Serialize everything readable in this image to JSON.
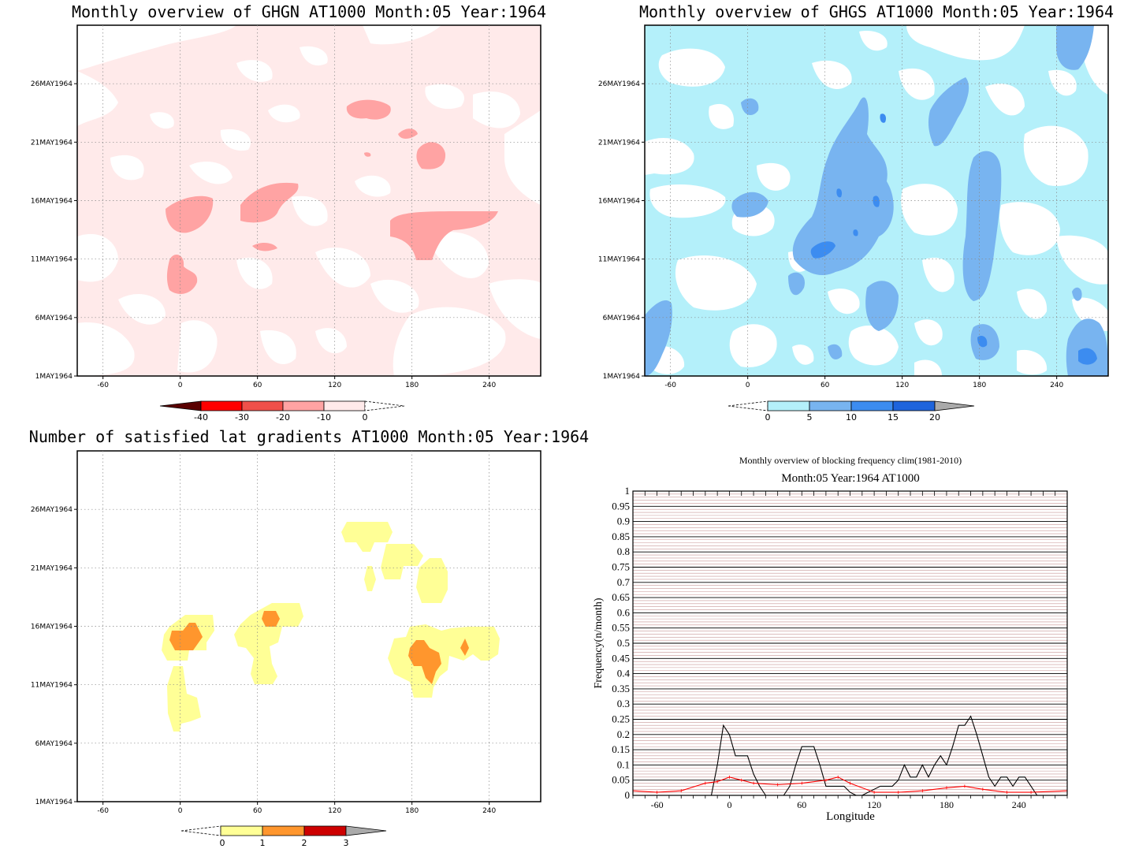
{
  "colors": {
    "ghgn": [
      "#5a0000",
      "#ff0000",
      "#f0504a",
      "#ffa3a3",
      "#ffeaea"
    ],
    "ghgs": [
      "#b4f0fa",
      "#78b4f0",
      "#3c8cf0",
      "#1e64dc",
      "#aaaaaa"
    ],
    "grad": [
      "#ffff96",
      "#ff962d",
      "#cd0000",
      "#aaaaaa"
    ],
    "freq_current": "#000000",
    "freq_clim": "#ff0000",
    "freq_grid": "#c89696"
  },
  "panels": {
    "ghgn": {
      "title": "Monthly overview of GHGN AT1000 Month:05 Year:1964",
      "colorbar_labels": [
        "-40",
        "-30",
        "-20",
        "-10",
        "0"
      ]
    },
    "ghgs": {
      "title": "Monthly overview of GHGS AT1000 Month:05 Year:1964",
      "colorbar_labels": [
        "0",
        "5",
        "10",
        "15",
        "20"
      ]
    },
    "grad": {
      "title": "Number of satisfied lat gradients AT1000 Month:05 Year:1964",
      "colorbar_labels": [
        "0",
        "1",
        "2",
        "3"
      ]
    },
    "freq": {
      "title": "Monthly overview of blocking frequency clim(1981-2010)",
      "subtitle": "Month:05 Year:1964  AT1000"
    }
  },
  "hovmoller_axes": {
    "x_ticks": [
      "-60",
      "0",
      "60",
      "120",
      "180",
      "240"
    ],
    "y_ticks": [
      "1MAY1964",
      "6MAY1964",
      "11MAY1964",
      "16MAY1964",
      "21MAY1964",
      "26MAY1964"
    ]
  },
  "chart_data": [
    {
      "type": "heatmap",
      "title": "Monthly overview of GHGN AT1000 Month:05 Year:1964",
      "x_ticks": [
        -60,
        0,
        60,
        120,
        180,
        240
      ],
      "y_ticks": [
        "1MAY1964",
        "6MAY1964",
        "11MAY1964",
        "16MAY1964",
        "21MAY1964",
        "26MAY1964"
      ],
      "xlim": [
        -80,
        280
      ],
      "colorbar": [
        -40,
        -30,
        -20,
        -10,
        0
      ]
    },
    {
      "type": "heatmap",
      "title": "Monthly overview of GHGS AT1000 Month:05 Year:1964",
      "x_ticks": [
        -60,
        0,
        60,
        120,
        180,
        240
      ],
      "y_ticks": [
        "1MAY1964",
        "6MAY1964",
        "11MAY1964",
        "16MAY1964",
        "21MAY1964",
        "26MAY1964"
      ],
      "xlim": [
        -80,
        280
      ],
      "colorbar": [
        0,
        5,
        10,
        15,
        20
      ]
    },
    {
      "type": "heatmap",
      "title": "Number of satisfied lat gradients AT1000 Month:05 Year:1964",
      "x_ticks": [
        -60,
        0,
        60,
        120,
        180,
        240
      ],
      "y_ticks": [
        "1MAY1964",
        "6MAY1964",
        "11MAY1964",
        "16MAY1964",
        "21MAY1964",
        "26MAY1964"
      ],
      "xlim": [
        -80,
        280
      ],
      "colorbar": [
        0,
        1,
        2,
        3
      ]
    },
    {
      "type": "line",
      "title": "Monthly overview of blocking frequency clim(1981-2010)",
      "subtitle": "Month:05 Year:1964  AT1000",
      "xlabel": "Longitude",
      "ylabel": "Frequency(n/month)",
      "xlim": [
        -80,
        280
      ],
      "ylim": [
        0,
        1
      ],
      "x_ticks": [
        -60,
        0,
        60,
        120,
        180,
        240
      ],
      "y_ticks": [
        "0",
        "0.05",
        "0.1",
        "0.15",
        "0.2",
        "0.25",
        "0.3",
        "0.35",
        "0.4",
        "0.45",
        "0.5",
        "0.55",
        "0.6",
        "0.65",
        "0.7",
        "0.75",
        "0.8",
        "0.85",
        "0.9",
        "0.95",
        "1"
      ],
      "series": [
        {
          "x": [
            -80,
            -15,
            -10,
            -5,
            0,
            5,
            15,
            20,
            25,
            30,
            45,
            50,
            55,
            60,
            65,
            70,
            75,
            80,
            85,
            90,
            95,
            100,
            105,
            110,
            125,
            130,
            135,
            140,
            145,
            150,
            155,
            160,
            165,
            170,
            175,
            180,
            185,
            190,
            195,
            200,
            205,
            210,
            215,
            220,
            225,
            230,
            235,
            240,
            245,
            250,
            255,
            260,
            280
          ],
          "y": [
            0,
            0,
            0.1,
            0.23,
            0.2,
            0.13,
            0.13,
            0.07,
            0.03,
            0,
            0,
            0.03,
            0.1,
            0.16,
            0.16,
            0.16,
            0.1,
            0.03,
            0.03,
            0.03,
            0.03,
            0.01,
            0,
            0,
            0.03,
            0.03,
            0.03,
            0.05,
            0.1,
            0.06,
            0.06,
            0.1,
            0.06,
            0.1,
            0.13,
            0.1,
            0.16,
            0.23,
            0.23,
            0.26,
            0.2,
            0.13,
            0.06,
            0.03,
            0.06,
            0.06,
            0.03,
            0.06,
            0.06,
            0.03,
            0,
            0,
            0
          ]
        },
        {
          "x": [
            -80,
            -60,
            -40,
            -20,
            -10,
            0,
            10,
            20,
            40,
            60,
            80,
            90,
            100,
            120,
            140,
            160,
            180,
            195,
            210,
            230,
            250,
            280
          ],
          "y": [
            0.015,
            0.01,
            0.015,
            0.04,
            0.045,
            0.06,
            0.05,
            0.04,
            0.035,
            0.04,
            0.05,
            0.06,
            0.04,
            0.01,
            0.01,
            0.015,
            0.025,
            0.03,
            0.02,
            0.01,
            0.01,
            0.015
          ]
        }
      ]
    }
  ]
}
